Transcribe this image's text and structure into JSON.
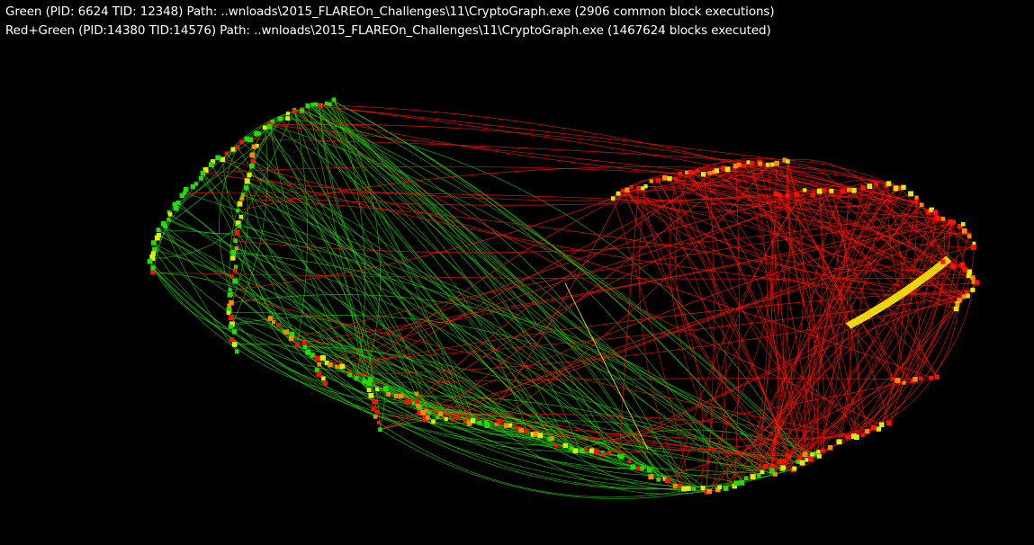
{
  "overlay": {
    "line1": "Green (PID: 6624 TID: 12348) Path: ..wnloads\\2015_FLAREOn_Challenges\\11\\CryptoGraph.exe (2906 common block executions)",
    "line2": "Red+Green (PID:14380 TID:14576) Path: ..wnloads\\2015_FLAREOn_Challenges\\11\\CryptoGraph.exe (1467624 blocks executed)"
  },
  "colors": {
    "background": "#000000",
    "text": "#ffffff",
    "green_trace": "#22dd00",
    "red_trace": "#ff1100",
    "highlight": "#ffee00",
    "node_orange": "#ff8800",
    "node_yellow": "#ddee00"
  }
}
